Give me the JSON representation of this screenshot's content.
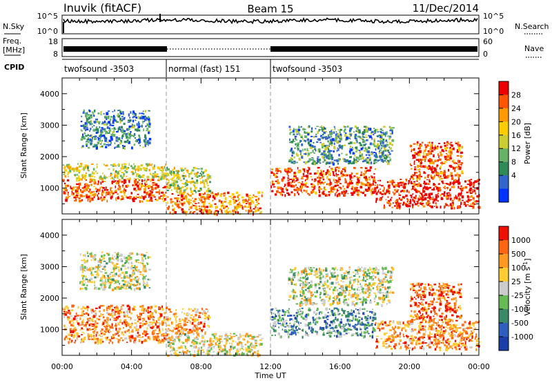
{
  "header": {
    "station": "Inuvik (fitACF)",
    "beam": "Beam 15",
    "date": "11/Dec/2014"
  },
  "labels": {
    "nsky": "N.Sky",
    "freq_top": "Freq.",
    "freq_unit": "[MHz]",
    "cpid": "CPID",
    "nsearch": "N.Search",
    "nave": "Nave",
    "time_axis": "Time UT",
    "slant_range": "Slant Range [km]",
    "power_label": "Power [dB]",
    "velocity_label": "Velocity [m s",
    "velocity_exp": "-1",
    "velocity_close": "]"
  },
  "noise_panel": {
    "left_ticks": [
      "10^5",
      "10^0"
    ],
    "right_ticks": [
      "10^5",
      "10^0"
    ]
  },
  "freq_panel": {
    "left_ticks": [
      "18",
      "8"
    ],
    "right_ticks": [
      "60",
      "0"
    ]
  },
  "cpid_segments": [
    {
      "label": "twofsound -3503",
      "start_hour": 0,
      "end_hour": 6
    },
    {
      "label": "normal (fast) 151",
      "start_hour": 6,
      "end_hour": 12
    },
    {
      "label": "twofsound -3503",
      "start_hour": 12,
      "end_hour": 24
    }
  ],
  "chart_data": [
    {
      "type": "heatmap",
      "name": "power",
      "xlabel": "Time UT",
      "ylabel": "Slant Range [km]",
      "xlim": [
        0,
        24
      ],
      "ylim": [
        180,
        4500
      ],
      "x_ticks": [
        "00:00",
        "04:00",
        "08:00",
        "12:00",
        "16:00",
        "20:00",
        "00:00"
      ],
      "y_ticks": [
        1000,
        2000,
        3000,
        4000
      ],
      "colorbar": {
        "label": "Power [dB]",
        "tick_labels": [
          "28",
          "24",
          "20",
          "16",
          "12",
          "8",
          "4"
        ],
        "range": [
          0,
          30
        ],
        "colors": [
          "#0033ff",
          "#3366cc",
          "#2e8b57",
          "#66b266",
          "#cccc33",
          "#ffcc00",
          "#ff9900",
          "#ff5500",
          "#ee0000"
        ]
      },
      "mode_boundaries_hours": [
        6,
        12
      ],
      "scatter_regions": [
        {
          "t_start": 0.0,
          "t_end": 6.0,
          "r_start": 600,
          "r_end": 1300,
          "level": 0.85
        },
        {
          "t_start": 0.0,
          "t_end": 6.0,
          "r_start": 1300,
          "r_end": 1800,
          "level": 0.55
        },
        {
          "t_start": 1.0,
          "t_end": 5.0,
          "r_start": 2300,
          "r_end": 3500,
          "level": 0.25
        },
        {
          "t_start": 6.0,
          "t_end": 11.5,
          "r_start": 200,
          "r_end": 900,
          "level": 0.75
        },
        {
          "t_start": 6.0,
          "t_end": 8.5,
          "r_start": 900,
          "r_end": 1700,
          "level": 0.5
        },
        {
          "t_start": 12.0,
          "t_end": 18.0,
          "r_start": 800,
          "r_end": 1700,
          "level": 0.85
        },
        {
          "t_start": 13.0,
          "t_end": 19.0,
          "r_start": 1800,
          "r_end": 3000,
          "level": 0.3
        },
        {
          "t_start": 18.0,
          "t_end": 24.0,
          "r_start": 400,
          "r_end": 1300,
          "level": 0.95
        },
        {
          "t_start": 20.0,
          "t_end": 23.0,
          "r_start": 1300,
          "r_end": 2500,
          "level": 0.85
        }
      ]
    },
    {
      "type": "heatmap",
      "name": "velocity",
      "xlabel": "Time UT",
      "ylabel": "Slant Range [km]",
      "xlim": [
        0,
        24
      ],
      "ylim": [
        180,
        4500
      ],
      "x_ticks": [
        "00:00",
        "04:00",
        "08:00",
        "12:00",
        "16:00",
        "20:00",
        "00:00"
      ],
      "y_ticks": [
        1000,
        2000,
        3000,
        4000
      ],
      "colorbar": {
        "label": "Velocity [m s-1]",
        "tick_labels": [
          "1000",
          "500",
          "100",
          "25",
          "-25",
          "-100",
          "-500",
          "-1000"
        ],
        "colors": [
          "#1a3fa8",
          "#2e5fbf",
          "#3a8a6a",
          "#66bb55",
          "#cccccc",
          "#ffcc33",
          "#ff9922",
          "#ff6611",
          "#ee1100"
        ]
      },
      "mode_boundaries_hours": [
        6,
        12
      ],
      "scatter_regions": [
        {
          "t_start": 0.0,
          "t_end": 6.0,
          "r_start": 600,
          "r_end": 1800,
          "level": 0.75
        },
        {
          "t_start": 1.0,
          "t_end": 5.0,
          "r_start": 2300,
          "r_end": 3500,
          "level": 0.5
        },
        {
          "t_start": 6.0,
          "t_end": 11.5,
          "r_start": 200,
          "r_end": 900,
          "level": 0.55
        },
        {
          "t_start": 6.0,
          "t_end": 8.5,
          "r_start": 900,
          "r_end": 1700,
          "level": 0.7
        },
        {
          "t_start": 12.0,
          "t_end": 18.0,
          "r_start": 800,
          "r_end": 1700,
          "level": 0.3
        },
        {
          "t_start": 13.0,
          "t_end": 19.0,
          "r_start": 1800,
          "r_end": 3000,
          "level": 0.5
        },
        {
          "t_start": 18.0,
          "t_end": 24.0,
          "r_start": 400,
          "r_end": 1300,
          "level": 0.75
        },
        {
          "t_start": 20.0,
          "t_end": 23.0,
          "r_start": 1300,
          "r_end": 2500,
          "level": 0.85
        }
      ]
    }
  ]
}
